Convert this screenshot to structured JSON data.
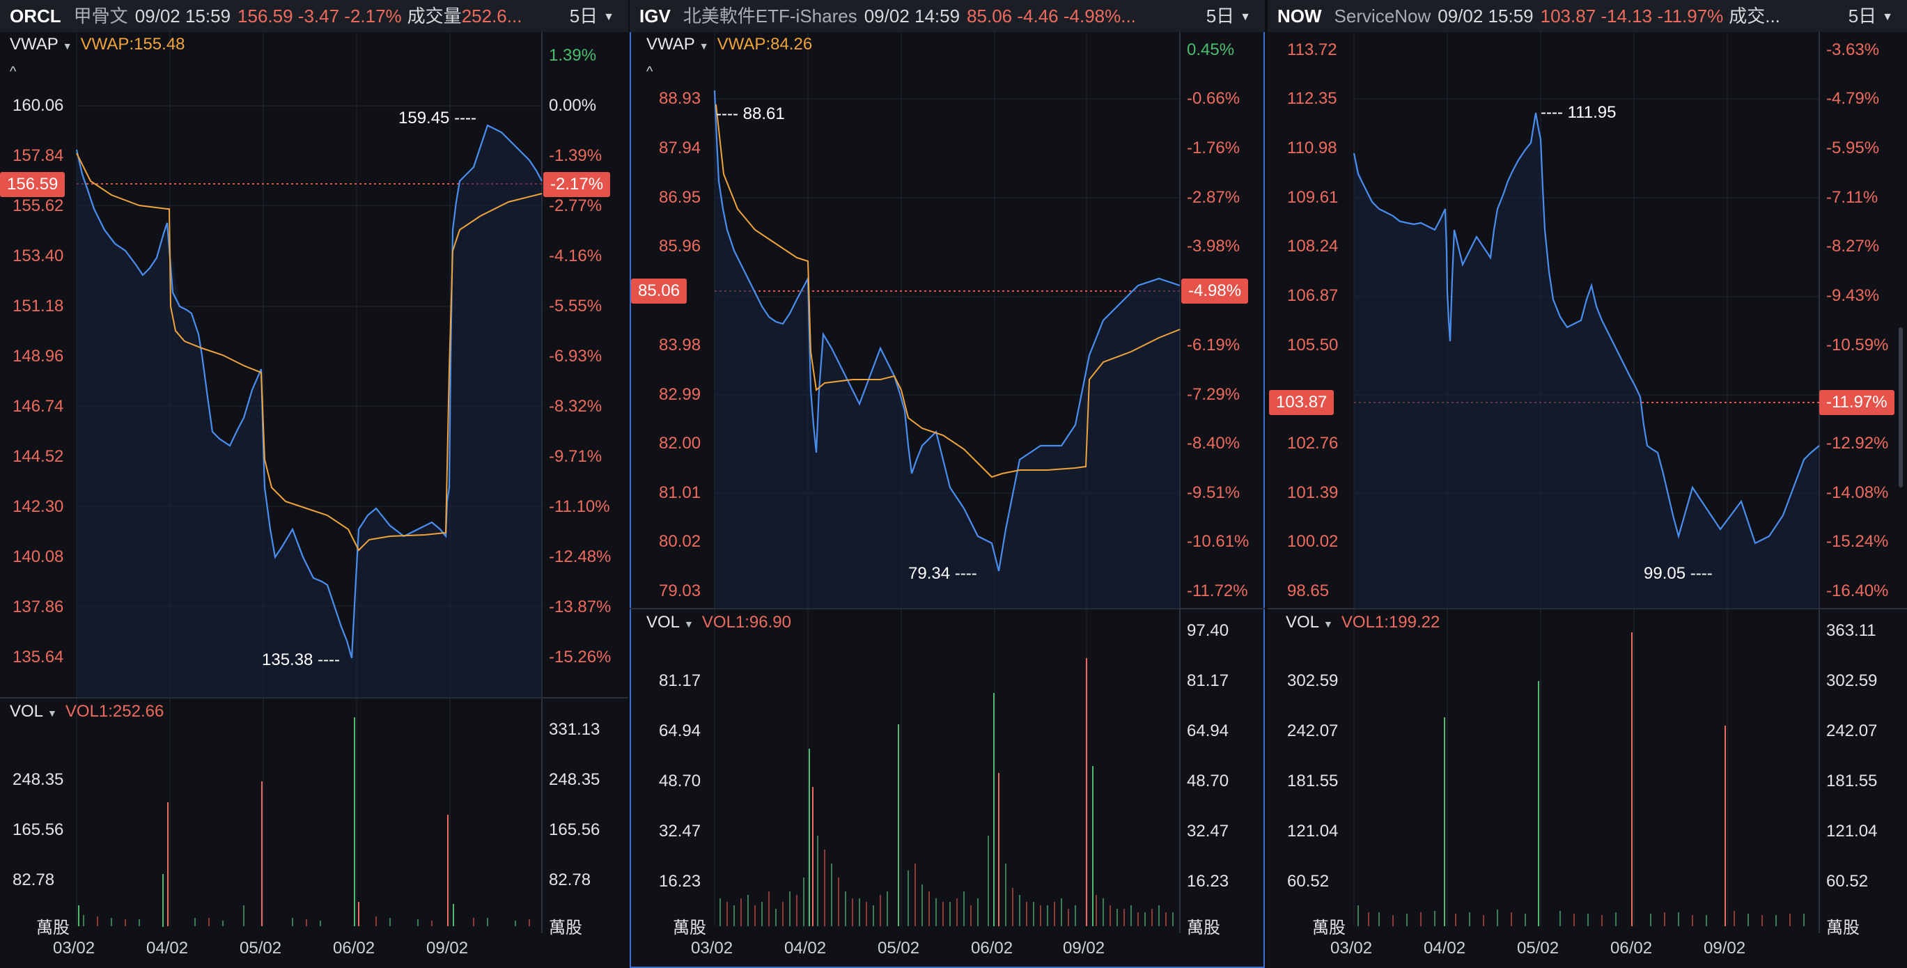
{
  "colors": {
    "up": "#4cbd6f",
    "down": "#ef6b5e",
    "price_line": "#4a8ff0",
    "vwap_line": "#f0a43b",
    "tag_bg": "#e5534b",
    "bg": "#0f1117",
    "header_bg": "#1b1e25",
    "selected_border": "#3d6fd1"
  },
  "icons": {
    "dropdown": "caret-down-icon",
    "collapse": "chevron-up-icon"
  },
  "panels": [
    {
      "symbol": "ORCL",
      "name": "甲骨文",
      "datetime": "09/02 15:59",
      "price_change": "156.59 -3.47 -2.17%",
      "volume_label": "成交量",
      "volume_value": "252.6...",
      "period": "5日",
      "vwap_label": "VWAP",
      "vwap_value": "VWAP:155.48",
      "collapse": "^",
      "price_ticks": [
        "160.06",
        "157.84",
        "155.62",
        "153.40",
        "151.18",
        "148.96",
        "146.74",
        "144.52",
        "142.30",
        "140.08",
        "137.86",
        "135.64"
      ],
      "pct_ticks": [
        "1.39%",
        "0.00%",
        "-1.39%",
        "-2.77%",
        "-4.16%",
        "-5.55%",
        "-6.93%",
        "-8.32%",
        "-9.71%",
        "-11.10%",
        "-12.48%",
        "-13.87%",
        "-15.26%"
      ],
      "last_price": "156.59",
      "last_pct": "-2.17%",
      "high_ann": "159.45 ----",
      "low_ann": "135.38 ----",
      "vol_label": "VOL",
      "vol_value": "VOL1:252.66",
      "vol_ticks_left": [
        "248.35",
        "165.56",
        "82.78"
      ],
      "vol_ticks_right": [
        "331.13",
        "248.35",
        "165.56",
        "82.78"
      ],
      "vol_unit": "萬股",
      "x_labels": [
        "03/02",
        "04/02",
        "05/02",
        "06/02",
        "09/02"
      ]
    },
    {
      "symbol": "IGV",
      "name": "北美軟件ETF-iShares",
      "datetime": "09/02 14:59",
      "price_change": "85.06 -4.46 -4.98%...",
      "volume_label": "",
      "volume_value": "",
      "period": "5日",
      "vwap_label": "VWAP",
      "vwap_value": "VWAP:84.26",
      "collapse": "^",
      "price_ticks": [
        "88.93",
        "87.94",
        "86.95",
        "85.96",
        "83.98",
        "82.99",
        "82.00",
        "81.01",
        "80.02",
        "79.03"
      ],
      "pct_ticks": [
        "0.45%",
        "-0.66%",
        "-1.76%",
        "-2.87%",
        "-3.98%",
        "-6.19%",
        "-7.29%",
        "-8.40%",
        "-9.51%",
        "-10.61%",
        "-11.72%"
      ],
      "last_price": "85.06",
      "last_pct": "-4.98%",
      "high_ann": "---- 88.61",
      "low_ann": "79.34 ----",
      "vol_label": "VOL",
      "vol_value": "VOL1:96.90",
      "vol_ticks_left": [
        "81.17",
        "64.94",
        "48.70",
        "32.47",
        "16.23"
      ],
      "vol_ticks_right": [
        "97.40",
        "81.17",
        "64.94",
        "48.70",
        "32.47",
        "16.23"
      ],
      "vol_unit": "萬股",
      "x_labels": [
        "03/02",
        "04/02",
        "05/02",
        "06/02",
        "09/02"
      ]
    },
    {
      "symbol": "NOW",
      "name": "ServiceNow",
      "datetime": "09/02 15:59",
      "price_change": "103.87 -14.13 -11.97%",
      "volume_label": "成交...",
      "volume_value": "",
      "period": "5日",
      "vwap_label": "",
      "vwap_value": "",
      "collapse": "",
      "price_ticks": [
        "113.72",
        "112.35",
        "110.98",
        "109.61",
        "108.24",
        "106.87",
        "105.50",
        "102.76",
        "101.39",
        "100.02",
        "98.65"
      ],
      "pct_ticks": [
        "-3.63%",
        "-4.79%",
        "-5.95%",
        "-7.11%",
        "-8.27%",
        "-9.43%",
        "-10.59%",
        "-12.92%",
        "-14.08%",
        "-15.24%",
        "-16.40%"
      ],
      "last_price": "103.87",
      "last_pct": "-11.97%",
      "high_ann": "---- 111.95",
      "low_ann": "99.05 ----",
      "vol_label": "VOL",
      "vol_value": "VOL1:199.22",
      "vol_ticks_left": [
        "302.59",
        "242.07",
        "181.55",
        "121.04",
        "60.52"
      ],
      "vol_ticks_right": [
        "363.11",
        "302.59",
        "242.07",
        "181.55",
        "121.04",
        "60.52"
      ],
      "vol_unit": "萬股",
      "x_labels": [
        "03/02",
        "04/02",
        "05/02",
        "06/02",
        "09/02"
      ]
    }
  ]
}
